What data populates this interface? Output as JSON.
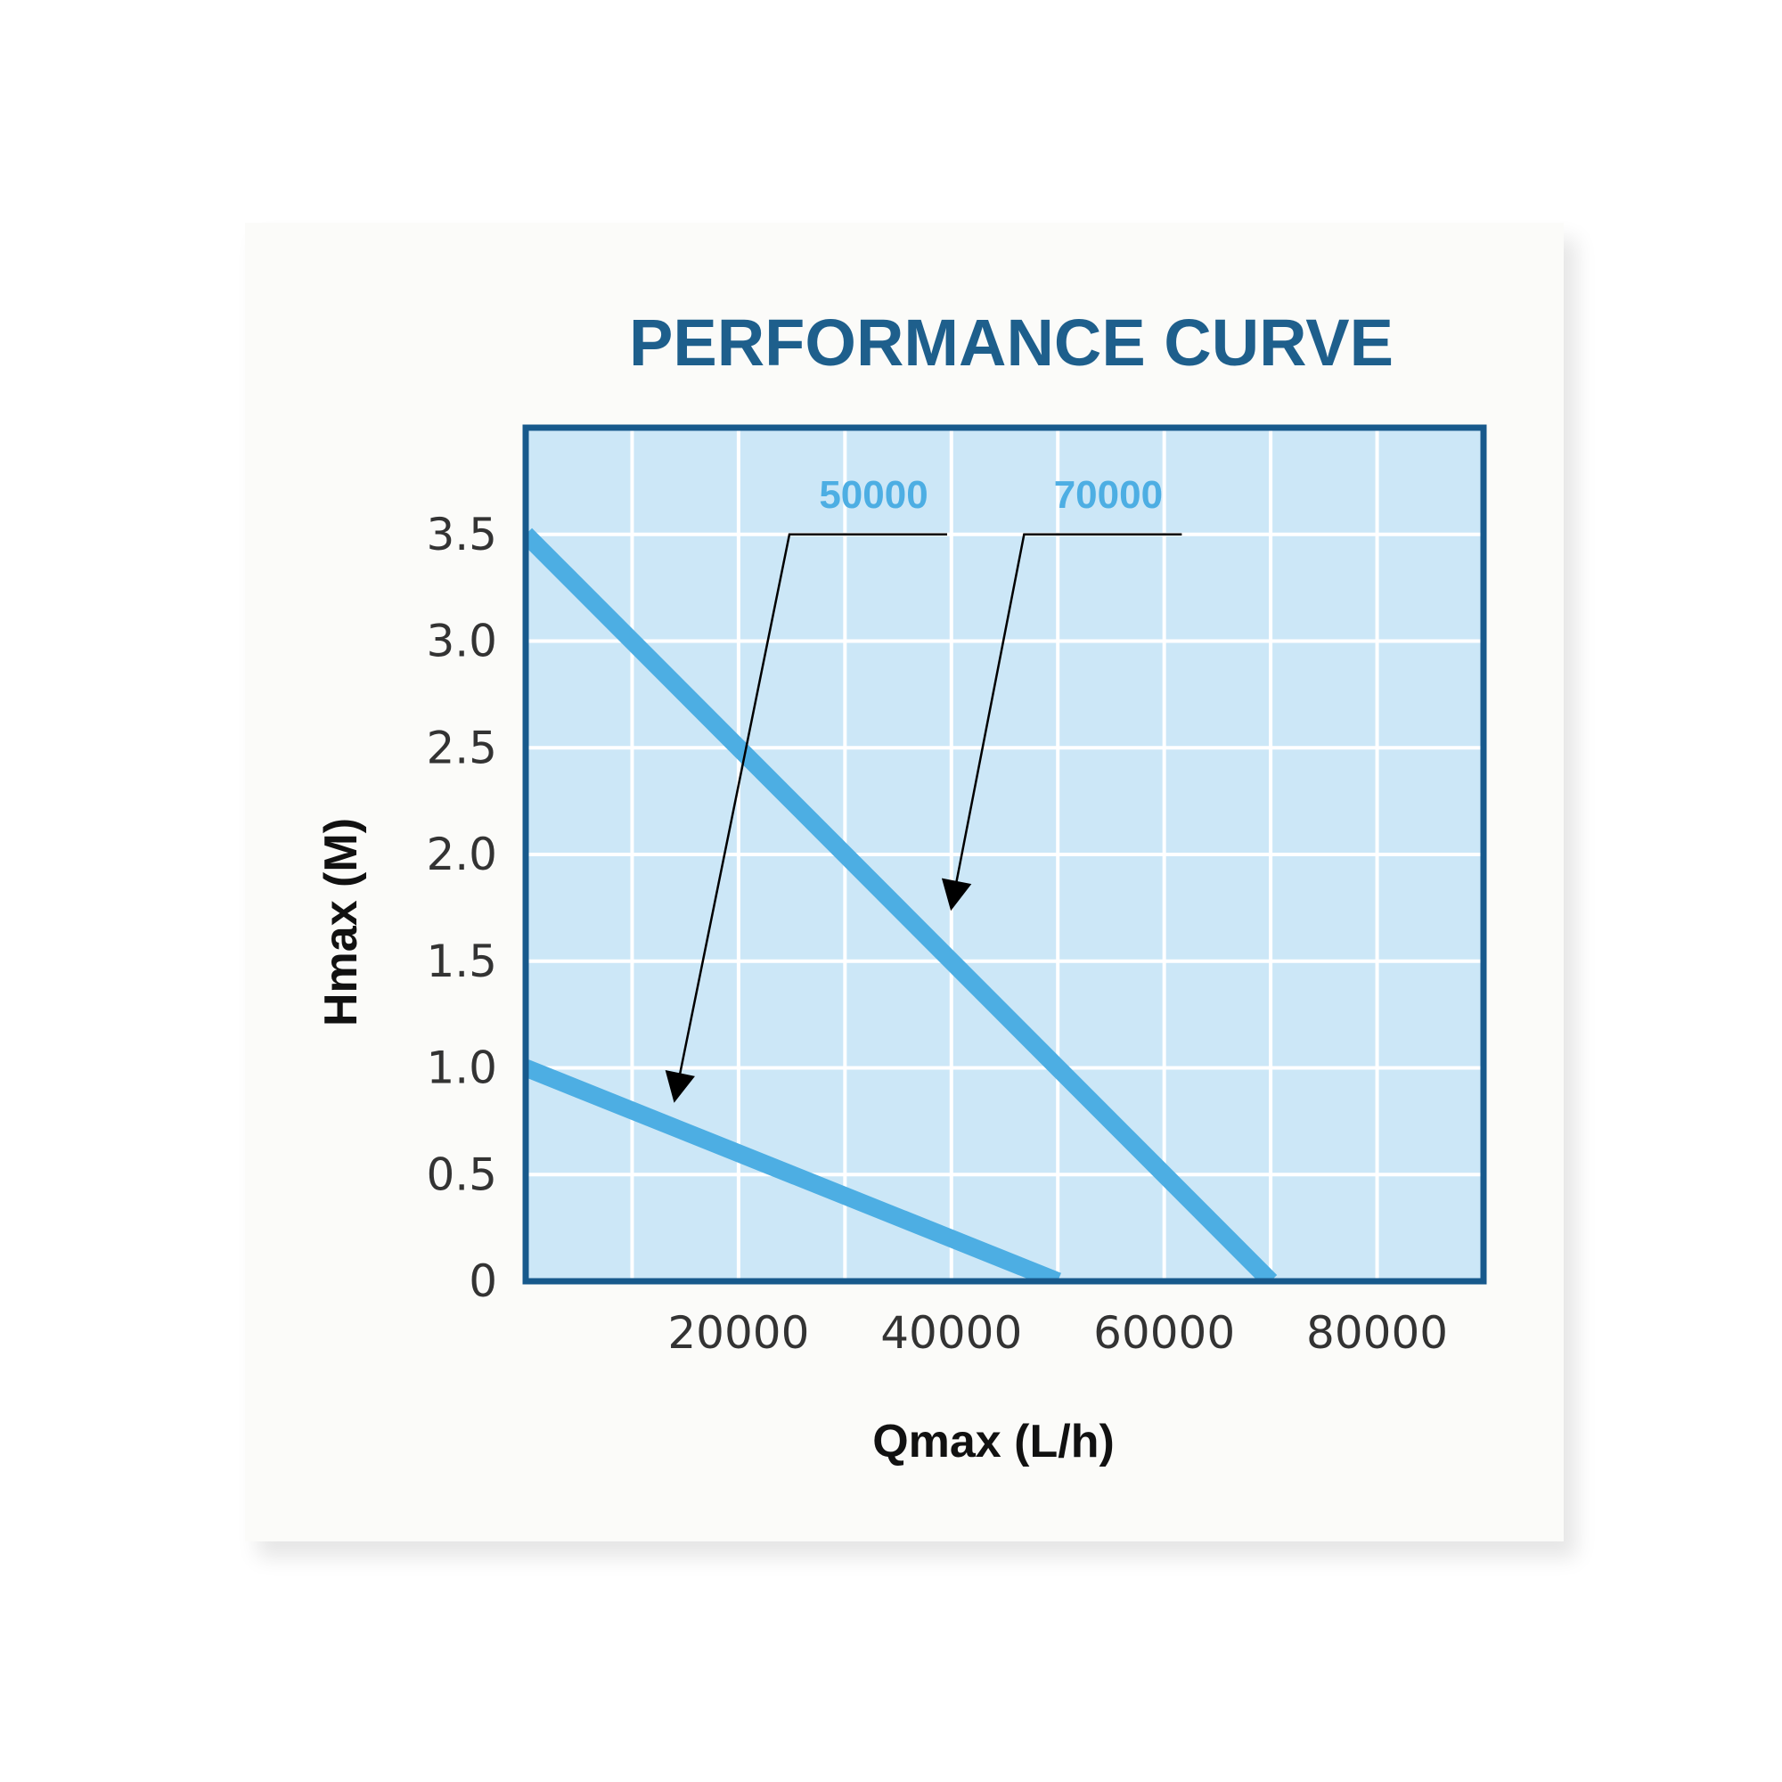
{
  "chart_data": {
    "type": "line",
    "title": "PERFORMANCE CURVE",
    "xlabel": "Qmax (L/h)",
    "ylabel": "Hmax (M)",
    "xlim": [
      0,
      90000
    ],
    "ylim": [
      0,
      4
    ],
    "x_ticks": [
      {
        "value": 20000,
        "label": "20000"
      },
      {
        "value": 40000,
        "label": "40000"
      },
      {
        "value": 60000,
        "label": "60000"
      },
      {
        "value": 80000,
        "label": "80000"
      }
    ],
    "y_ticks": [
      {
        "value": 0,
        "label": "0"
      },
      {
        "value": 0.5,
        "label": "0.5"
      },
      {
        "value": 1.0,
        "label": "1.0"
      },
      {
        "value": 1.5,
        "label": "1.5"
      },
      {
        "value": 2.0,
        "label": "2.0"
      },
      {
        "value": 2.5,
        "label": "2.5"
      },
      {
        "value": 3.0,
        "label": "3.0"
      },
      {
        "value": 3.5,
        "label": "3.5"
      }
    ],
    "grid": true,
    "series": [
      {
        "name": "50000",
        "x": [
          0,
          50000
        ],
        "y": [
          1.0,
          0
        ]
      },
      {
        "name": "70000",
        "x": [
          0,
          70000
        ],
        "y": [
          3.5,
          0
        ]
      }
    ],
    "annotations": [
      {
        "label": "50000",
        "points_to_series": "50000",
        "target": [
          14000,
          0.85
        ]
      },
      {
        "label": "70000",
        "points_to_series": "70000",
        "target": [
          40000,
          1.75
        ]
      }
    ],
    "colors": {
      "title": "#1e5f8c",
      "frame": "#17598c",
      "plot_bg": "#cce7f7",
      "grid": "#ffffff",
      "series": "#4daee3",
      "annotation_text": "#4daee3",
      "arrow": "#000000",
      "tick_text": "#333333",
      "axis_label": "#111111"
    }
  }
}
